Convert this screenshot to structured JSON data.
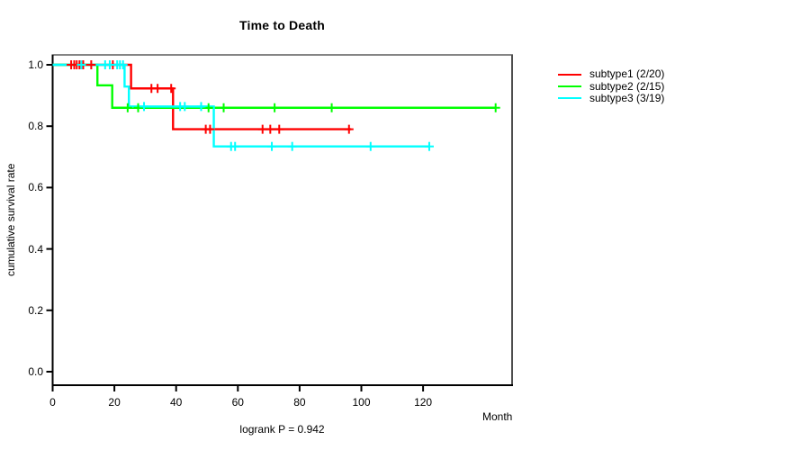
{
  "title": "Time to Death",
  "chart_data": {
    "type": "line",
    "subtype": "kaplan-meier-step-curves",
    "title": "Time to Death",
    "xlabel": "Month",
    "ylabel": "cumulative survival rate",
    "annotation": "logrank P = 0.942",
    "xlim": [
      0,
      149
    ],
    "ylim": [
      0,
      1.0
    ],
    "grid": false,
    "legend_position": "right-outside",
    "x_ticks": [
      {
        "value": 0,
        "label": "0"
      },
      {
        "value": 20,
        "label": "20"
      },
      {
        "value": 40,
        "label": "40"
      },
      {
        "value": 60,
        "label": "60"
      },
      {
        "value": 80,
        "label": "80"
      },
      {
        "value": 100,
        "label": "100"
      },
      {
        "value": 120,
        "label": "120"
      }
    ],
    "y_ticks": [
      {
        "value": 1.0,
        "label": "1.0"
      },
      {
        "value": 0.8,
        "label": "0.8"
      },
      {
        "value": 0.6,
        "label": "0.6"
      },
      {
        "value": 0.4,
        "label": "0.4"
      },
      {
        "value": 0.2,
        "label": "0.2"
      },
      {
        "value": 0.0,
        "label": "0.0"
      }
    ],
    "series": [
      {
        "name": "subtype1",
        "legend_label": "subtype1 (2/20)",
        "color": "#ff0000",
        "events": 2,
        "n": 20,
        "steps": [
          [
            0,
            1.0
          ],
          [
            25.4,
            0.923
          ],
          [
            39.0,
            0.79
          ],
          [
            96.7,
            0.79
          ]
        ],
        "censor_marks": [
          [
            6.0,
            1.0
          ],
          [
            7.0,
            1.0
          ],
          [
            7.8,
            1.0
          ],
          [
            8.7,
            1.0
          ],
          [
            9.9,
            1.0
          ],
          [
            12.5,
            1.0
          ],
          [
            19.5,
            1.0
          ],
          [
            32.0,
            0.923
          ],
          [
            34.0,
            0.923
          ],
          [
            38.4,
            0.923
          ],
          [
            49.6,
            0.79
          ],
          [
            51.0,
            0.79
          ],
          [
            68.0,
            0.79
          ],
          [
            70.5,
            0.79
          ],
          [
            73.4,
            0.79
          ],
          [
            96.0,
            0.79
          ]
        ]
      },
      {
        "name": "subtype2",
        "legend_label": "subtype2 (2/15)",
        "color": "#00ff00",
        "events": 2,
        "n": 15,
        "steps": [
          [
            0,
            1.0
          ],
          [
            14.5,
            0.933
          ],
          [
            19.3,
            0.86
          ],
          [
            143.5,
            0.86
          ]
        ],
        "censor_marks": [
          [
            24.3,
            0.86
          ],
          [
            27.7,
            0.86
          ],
          [
            50.5,
            0.86
          ],
          [
            55.4,
            0.86
          ],
          [
            71.9,
            0.86
          ],
          [
            90.4,
            0.86
          ],
          [
            143.5,
            0.86
          ]
        ]
      },
      {
        "name": "subtype3",
        "legend_label": "subtype3 (3/19)",
        "color": "#00ffff",
        "events": 3,
        "n": 19,
        "steps": [
          [
            0,
            1.0
          ],
          [
            23.3,
            0.929
          ],
          [
            24.7,
            0.864
          ],
          [
            52.2,
            0.734
          ],
          [
            122.3,
            0.734
          ]
        ],
        "censor_marks": [
          [
            9.3,
            1.0
          ],
          [
            17.0,
            1.0
          ],
          [
            18.5,
            1.0
          ],
          [
            20.9,
            1.0
          ],
          [
            21.8,
            1.0
          ],
          [
            22.8,
            1.0
          ],
          [
            29.6,
            0.864
          ],
          [
            41.3,
            0.864
          ],
          [
            42.8,
            0.864
          ],
          [
            48.1,
            0.864
          ],
          [
            57.8,
            0.734
          ],
          [
            59.1,
            0.734
          ],
          [
            71.0,
            0.734
          ],
          [
            77.6,
            0.734
          ],
          [
            103.0,
            0.734
          ],
          [
            122.0,
            0.734
          ]
        ]
      }
    ]
  }
}
